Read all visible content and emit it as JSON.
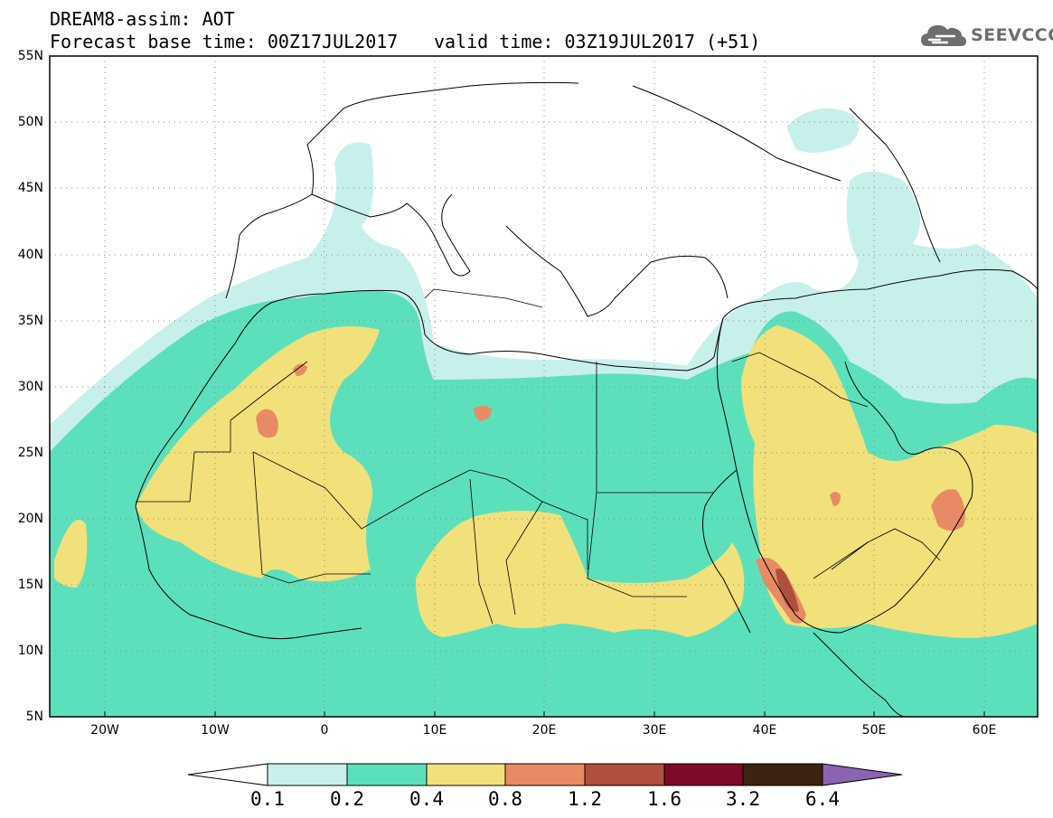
{
  "header": {
    "title": "DREAM8-assim: AOT",
    "base_time": "Forecast base time: 00Z17JUL2017",
    "valid_time": "valid time: 03Z19JUL2017 (+51)"
  },
  "logo": {
    "text": "SEEVCCC",
    "icon": "cloud-icon"
  },
  "map": {
    "lat_labels": [
      "55N",
      "50N",
      "45N",
      "40N",
      "35N",
      "30N",
      "25N",
      "20N",
      "15N",
      "10N",
      "5N"
    ],
    "lon_labels": [
      "20W",
      "10W",
      "0",
      "10E",
      "20E",
      "30E",
      "40E",
      "50E",
      "60E"
    ],
    "colors": {
      "c01": "#c8f0ea",
      "c02": "#5ce0bc",
      "c04": "#f2e07a",
      "c08": "#e88b64",
      "c12": "#b0503c",
      "c16": "#7e0a28",
      "c32": "#3c2412",
      "c64": "#8a64b0"
    }
  },
  "colorbar": {
    "labels": [
      "0.1",
      "0.2",
      "0.4",
      "0.8",
      "1.2",
      "1.6",
      "3.2",
      "6.4"
    ]
  }
}
